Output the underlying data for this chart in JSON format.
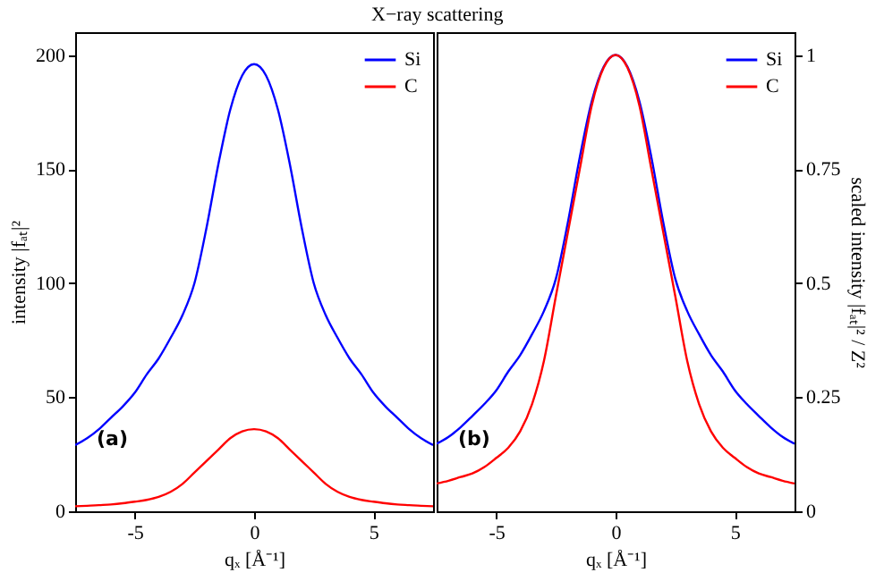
{
  "chart_data": [
    {
      "type": "line",
      "title": "X−ray scattering",
      "xlabel": "qₓ  [Å⁻¹]",
      "ylabel": "intensity |fₐₜ|²",
      "annotations": [
        "(a)"
      ],
      "x": [
        -7.5,
        -7,
        -6.5,
        -6,
        -5.5,
        -5,
        -4.5,
        -4,
        -3.5,
        -3,
        -2.5,
        -2,
        -1.5,
        -1,
        -0.5,
        0,
        0.5,
        1,
        1.5,
        2,
        2.5,
        3,
        3.5,
        4,
        4.5,
        5,
        5.5,
        6,
        6.5,
        7,
        7.5
      ],
      "series": [
        {
          "name": "Si",
          "color": "#0000ff",
          "values": [
            29,
            32,
            36,
            41,
            46,
            52,
            60,
            67,
            76,
            86,
            100,
            124,
            152,
            176,
            191,
            196,
            191,
            176,
            152,
            124,
            100,
            86,
            76,
            67,
            60,
            52,
            46,
            41,
            36,
            32,
            29
          ]
        },
        {
          "name": "C",
          "color": "#ff0000",
          "values": [
            2.2,
            2.4,
            2.7,
            3,
            3.5,
            4.2,
            5,
            6.3,
            8.5,
            12,
            17,
            22,
            27,
            32,
            35,
            36,
            35,
            32,
            27,
            22,
            17,
            12,
            8.5,
            6.3,
            5,
            4.2,
            3.5,
            3,
            2.7,
            2.4,
            2.2
          ]
        }
      ],
      "xlim": [
        -7.5,
        7.5
      ],
      "xticks": [
        -5,
        0,
        5
      ],
      "ylim": [
        0,
        210
      ],
      "yticks": [
        0,
        50,
        100,
        150,
        200
      ],
      "legend": "top right",
      "grid": false
    },
    {
      "type": "line",
      "xlabel": "qₓ  [Å⁻¹]",
      "y2label": "scaled intensity |fₐₜ|² / Z²",
      "annotations": [
        "(b)"
      ],
      "x": [
        -7.5,
        -7,
        -6.5,
        -6,
        -5.5,
        -5,
        -4.5,
        -4,
        -3.5,
        -3,
        -2.5,
        -2,
        -1.5,
        -1,
        -0.5,
        0,
        0.5,
        1,
        1.5,
        2,
        2.5,
        3,
        3.5,
        4,
        4.5,
        5,
        5.5,
        6,
        6.5,
        7,
        7.5
      ],
      "series": [
        {
          "name": "Si",
          "color": "#0000ff",
          "axis": "y2",
          "values": [
            0.148,
            0.163,
            0.184,
            0.209,
            0.235,
            0.265,
            0.306,
            0.342,
            0.388,
            0.439,
            0.51,
            0.633,
            0.776,
            0.898,
            0.974,
            1,
            0.974,
            0.898,
            0.776,
            0.633,
            0.51,
            0.439,
            0.388,
            0.342,
            0.306,
            0.265,
            0.235,
            0.209,
            0.184,
            0.163,
            0.148
          ]
        },
        {
          "name": "C",
          "color": "#ff0000",
          "axis": "y2",
          "values": [
            0.061,
            0.067,
            0.075,
            0.083,
            0.097,
            0.117,
            0.139,
            0.175,
            0.235,
            0.33,
            0.472,
            0.611,
            0.75,
            0.889,
            0.972,
            1,
            0.972,
            0.889,
            0.75,
            0.611,
            0.472,
            0.33,
            0.235,
            0.175,
            0.139,
            0.117,
            0.097,
            0.083,
            0.075,
            0.067,
            0.061
          ]
        }
      ],
      "xlim": [
        -7.5,
        7.5
      ],
      "xticks": [
        -5,
        0,
        5
      ],
      "y2lim": [
        0,
        1.05
      ],
      "y2ticks": [
        0,
        0.25,
        0.5,
        0.75,
        1
      ],
      "legend": "top right",
      "grid": false
    }
  ]
}
